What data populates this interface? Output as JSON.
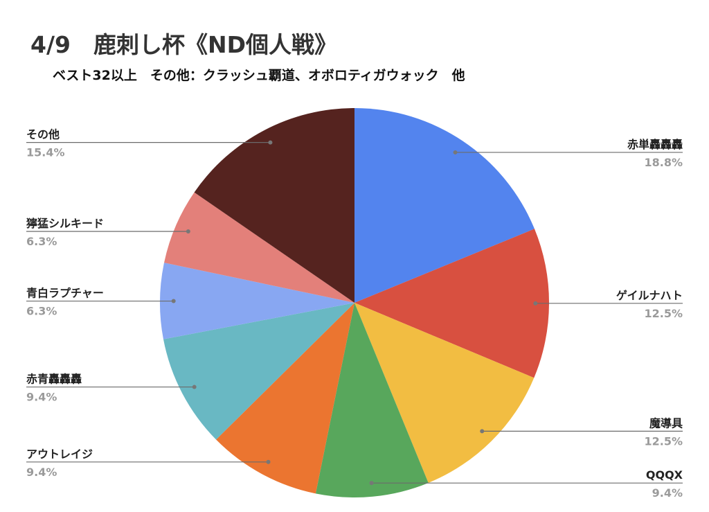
{
  "chart_data": {
    "type": "pie",
    "title": "4/9　鹿刺し杯《ND個人戦》",
    "subtitle": "ベスト32以上　その他：クラッシュ覇道、オボロティガウォック　他",
    "start_angle_deg": 0,
    "direction": "clockwise",
    "slices": [
      {
        "name": "赤単轟轟轟",
        "value": 18.8,
        "label": "18.8%",
        "color": "#5384EE",
        "side": "right"
      },
      {
        "name": "ゲイルナハト",
        "value": 12.5,
        "label": "12.5%",
        "color": "#D85040",
        "side": "right"
      },
      {
        "name": "魔導具",
        "value": 12.5,
        "label": "12.5%",
        "color": "#F2BD42",
        "side": "right"
      },
      {
        "name": "QQQX",
        "value": 9.4,
        "label": "9.4%",
        "color": "#58A75C",
        "side": "right"
      },
      {
        "name": "アウトレイジ",
        "value": 9.4,
        "label": "9.4%",
        "color": "#EB7530",
        "side": "left"
      },
      {
        "name": "赤青轟轟轟",
        "value": 9.4,
        "label": "9.4%",
        "color": "#69B8C3",
        "side": "left"
      },
      {
        "name": "青白ラプチャー",
        "value": 6.3,
        "label": "6.3%",
        "color": "#88A7F2",
        "side": "left"
      },
      {
        "name": "獰猛シルキード",
        "value": 6.3,
        "label": "6.3%",
        "color": "#E3807A",
        "side": "left"
      },
      {
        "name": "その他",
        "value": 15.4,
        "label": "15.4%",
        "color": "#55231F",
        "side": "left"
      }
    ]
  }
}
